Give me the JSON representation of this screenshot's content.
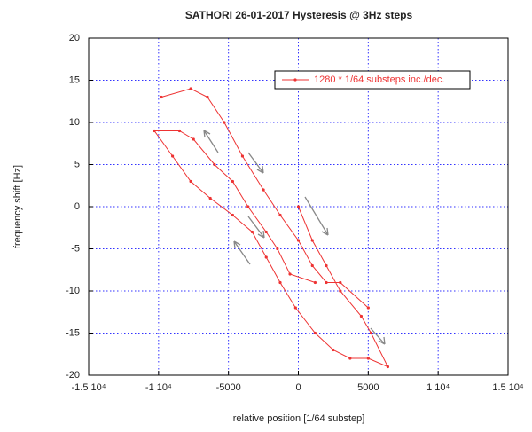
{
  "chart_data": {
    "type": "line",
    "title": "SATHORI 26-01-2017 Hysteresis @ 3Hz steps",
    "x_label": "relative position [1/64 substep]",
    "y_label": "frequency shift [Hz]",
    "xlim": [
      -15000,
      15000
    ],
    "ylim": [
      -20,
      20
    ],
    "xticks": [
      {
        "value": -15000,
        "label": "-1.5 10⁴"
      },
      {
        "value": -10000,
        "label": "-1 10⁴"
      },
      -5000,
      0,
      5000,
      {
        "value": 10000,
        "label": "1 10⁴"
      },
      {
        "value": 15000,
        "label": "1.5 10⁴"
      }
    ],
    "yticks": [
      -20,
      -15,
      -10,
      -5,
      0,
      5,
      10,
      15,
      20
    ],
    "grid": true,
    "grid_color": "#3333ff",
    "legend": "upper right",
    "series": [
      {
        "name": "1280 * 1/64 substeps inc./dec.",
        "color": "#ee3333",
        "x": [
          -9800,
          -7700,
          -6500,
          -5300,
          -4000,
          -2500,
          -1300,
          0,
          1000,
          2000,
          3000,
          5000,
          null,
          0,
          1000,
          2000,
          3000,
          4500,
          5200,
          6400,
          5000,
          3700,
          2500,
          1200,
          -200,
          -1300,
          -2300,
          -3300,
          -4700,
          -6300,
          -7700,
          -9000,
          -10300,
          -8500,
          -7500,
          -6000,
          -4700,
          -3600,
          -2300,
          -1500,
          -600,
          1200
        ],
        "values": [
          13,
          14,
          13,
          10,
          6,
          2,
          -1,
          -4,
          -7,
          -9,
          -9,
          -12,
          null,
          0,
          -4,
          -7,
          -10,
          -13,
          -15,
          -19,
          -18,
          -18,
          -17,
          -15,
          -12,
          -9,
          -6,
          -3,
          -1,
          1,
          3,
          6,
          9,
          9,
          8,
          5,
          3,
          0,
          -3,
          -5,
          -8,
          -9
        ]
      }
    ]
  }
}
